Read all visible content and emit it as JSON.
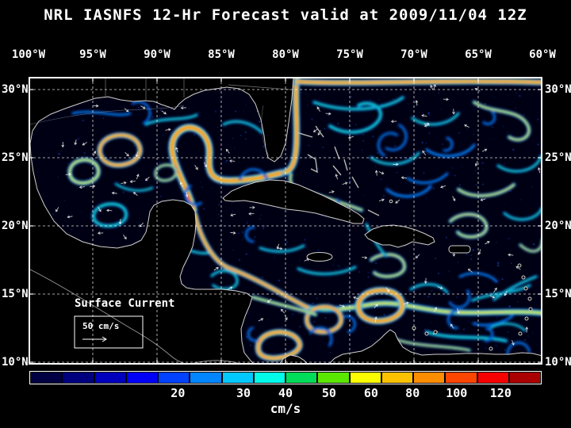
{
  "title": "NRL IASNFS  12-Hr Forecast valid at 2009/11/04 12Z",
  "map": {
    "lon_labels": [
      "100°W",
      "95°W",
      "90°W",
      "85°W",
      "80°W",
      "75°W",
      "70°W",
      "65°W",
      "60°W"
    ],
    "lat_labels": [
      "30°N",
      "25°N",
      "20°N",
      "15°N",
      "10°N"
    ],
    "annotation": "Surface Current",
    "scale": {
      "label": "50 cm/s"
    }
  },
  "colorbar": {
    "unit": "cm/s",
    "segment_colors": [
      "#000042",
      "#00007e",
      "#0000bc",
      "#0000f6",
      "#0142ff",
      "#0186ff",
      "#01c8ff",
      "#00fce8",
      "#00dc5a",
      "#5ae800",
      "#fcfc00",
      "#fcc200",
      "#fc8c00",
      "#fc4600",
      "#f60000",
      "#aa0000"
    ],
    "ticks": [
      {
        "label": "20",
        "pos": 0.29
      },
      {
        "label": "30",
        "pos": 0.418
      },
      {
        "label": "40",
        "pos": 0.5
      },
      {
        "label": "50",
        "pos": 0.585
      },
      {
        "label": "60",
        "pos": 0.667
      },
      {
        "label": "80",
        "pos": 0.748
      },
      {
        "label": "100",
        "pos": 0.834
      },
      {
        "label": "120",
        "pos": 0.92
      }
    ]
  },
  "chart_data": {
    "type": "heatmap",
    "title": "NRL IASNFS 12-Hr Forecast valid at 2009/11/04 12Z",
    "variable": "Surface Current",
    "unit": "cm/s",
    "x_ticks": [
      "100°W",
      "95°W",
      "90°W",
      "85°W",
      "80°W",
      "75°W",
      "70°W",
      "65°W",
      "60°W"
    ],
    "y_ticks": [
      "30°N",
      "25°N",
      "20°N",
      "15°N",
      "10°N"
    ],
    "colorbar_tick_values": [
      20,
      30,
      40,
      50,
      60,
      80,
      100,
      120
    ],
    "legend_position": "bottom",
    "grid": true
  },
  "colors": {
    "background": "#000000",
    "ocean": "#000014",
    "land": "#000000",
    "coastline": "#d0d0d0",
    "grid": "#ffffff",
    "frame": "#ffffff",
    "text": "#ffffff"
  }
}
